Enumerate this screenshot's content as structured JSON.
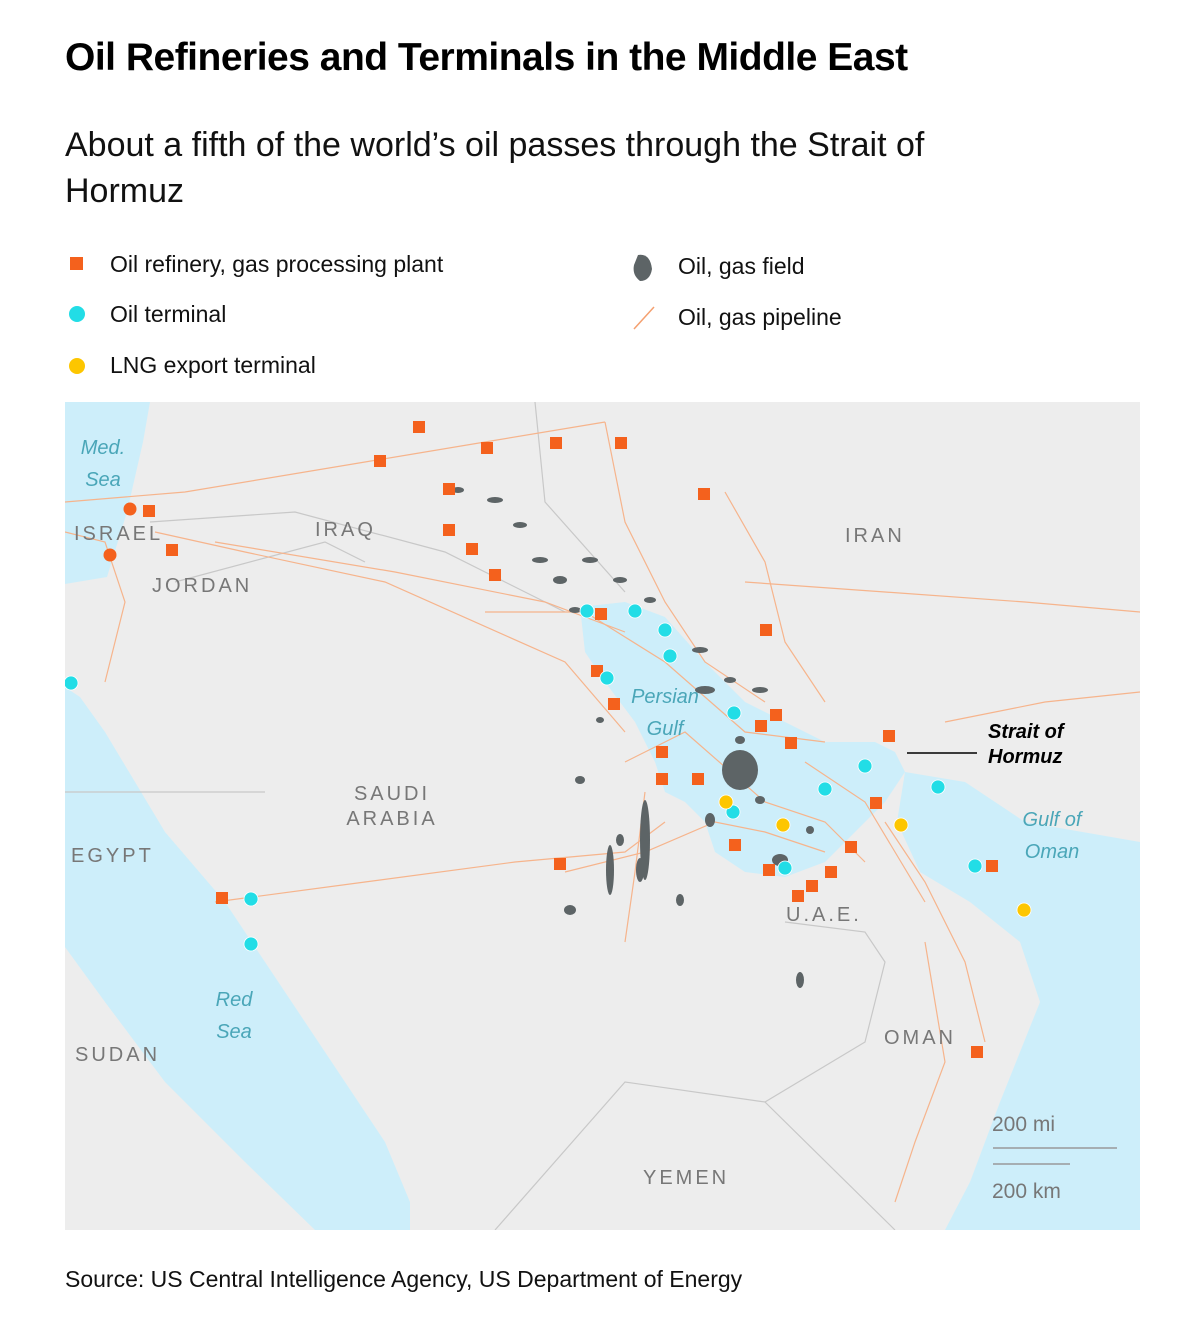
{
  "header": {
    "title": "Oil Refineries and Terminals in the Middle East",
    "subtitle": "About a fifth of the world’s oil passes through the Strait of Hormuz"
  },
  "legend": [
    {
      "label": "Oil refinery, gas processing plant"
    },
    {
      "label": "Oil terminal"
    },
    {
      "label": "LNG export terminal"
    },
    {
      "label": "Oil, gas field"
    },
    {
      "label": "Oil, gas pipeline"
    }
  ],
  "map": {
    "labels": {
      "med_sea": "Med. Sea",
      "israel": "ISRAEL",
      "jordan": "JORDAN",
      "iraq": "IRAQ",
      "iran": "IRAN",
      "persian_gulf": "Persian Gulf",
      "saudi_arabia": "SAUDI ARABIA",
      "egypt": "EGYPT",
      "strait": "Strait of Hormuz",
      "gulf_of_oman": "Gulf of Oman",
      "uae": "U.A.E.",
      "red_sea": "Red Sea",
      "sudan": "SUDAN",
      "oman": "OMAN",
      "yemen": "YEMEN"
    },
    "scale": {
      "miles": "200 mi",
      "km": "200 km"
    }
  },
  "source": "Source: US Central Intelligence Agency, US Department of Energy"
}
